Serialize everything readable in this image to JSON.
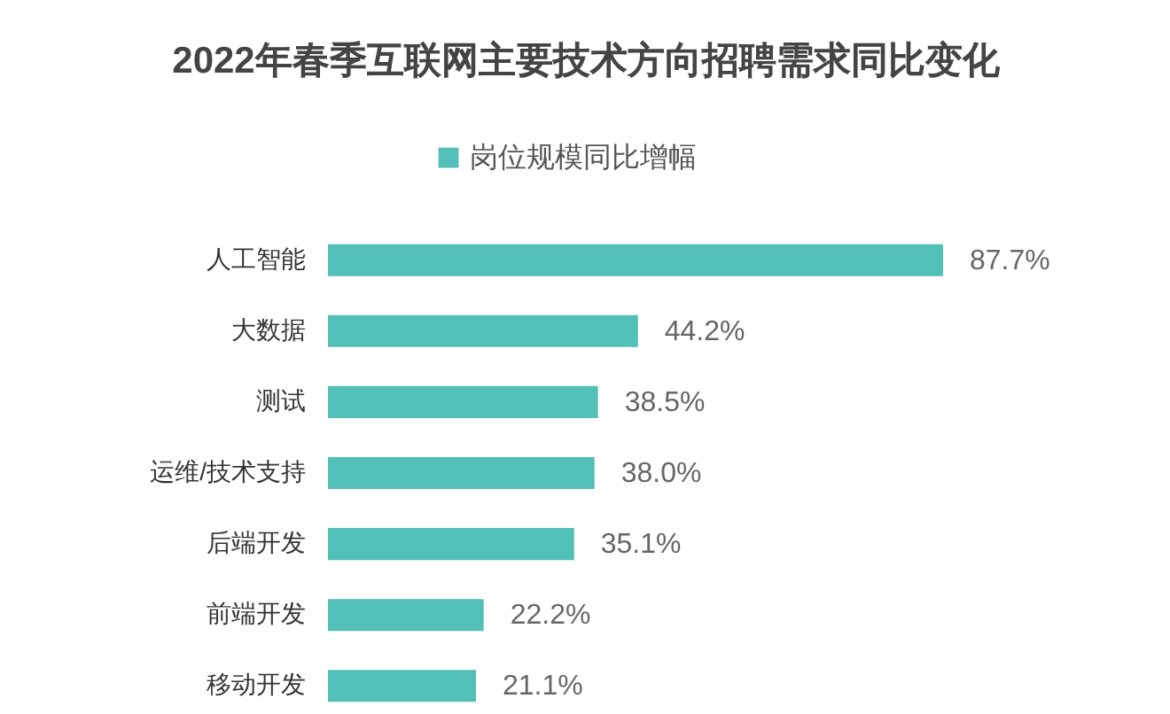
{
  "chart_data": {
    "type": "bar",
    "orientation": "horizontal",
    "title": "2022年春季互联网主要技术方向招聘需求同比变化",
    "legend": "top",
    "categories": [
      "人工智能",
      "大数据",
      "测试",
      "运维/技术支持",
      "后端开发",
      "前端开发",
      "移动开发"
    ],
    "series": [
      {
        "name": "岗位规模同比增幅",
        "color": "#52bfb8",
        "values": [
          87.7,
          44.2,
          38.5,
          38.0,
          35.1,
          22.2,
          21.1
        ],
        "value_labels": [
          "87.7%",
          "44.2%",
          "38.5%",
          "38.0%",
          "35.1%",
          "22.2%",
          "21.1%"
        ]
      }
    ]
  }
}
